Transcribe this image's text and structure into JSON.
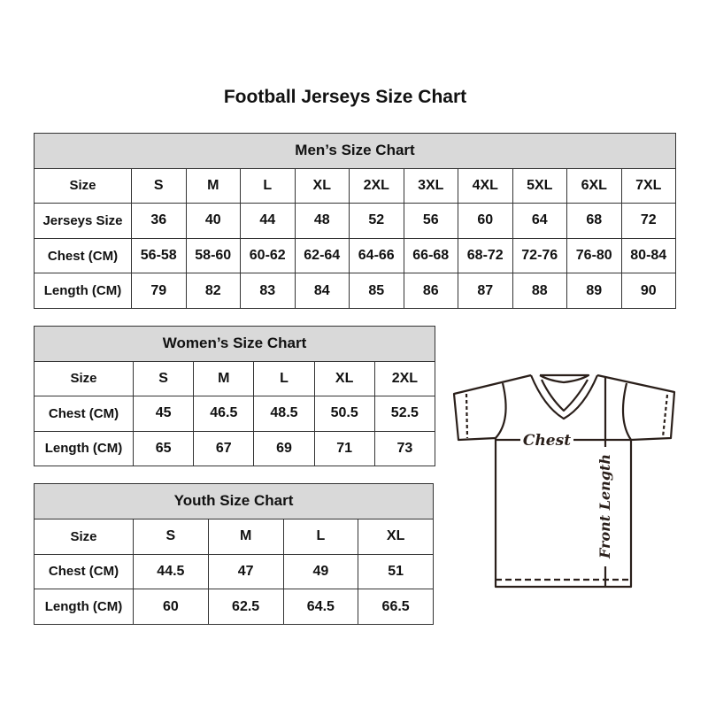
{
  "title": "Football Jerseys Size Chart",
  "men": {
    "heading": "Men’s Size Chart",
    "rows": [
      {
        "label": "Size",
        "values": [
          "S",
          "M",
          "L",
          "XL",
          "2XL",
          "3XL",
          "4XL",
          "5XL",
          "6XL",
          "7XL"
        ]
      },
      {
        "label": "Jerseys Size",
        "values": [
          "36",
          "40",
          "44",
          "48",
          "52",
          "56",
          "60",
          "64",
          "68",
          "72"
        ]
      },
      {
        "label": "Chest (CM)",
        "values": [
          "56-58",
          "58-60",
          "60-62",
          "62-64",
          "64-66",
          "66-68",
          "68-72",
          "72-76",
          "76-80",
          "80-84"
        ]
      },
      {
        "label": "Length (CM)",
        "values": [
          "79",
          "82",
          "83",
          "84",
          "85",
          "86",
          "87",
          "88",
          "89",
          "90"
        ]
      }
    ]
  },
  "women": {
    "heading": "Women’s Size Chart",
    "rows": [
      {
        "label": "Size",
        "values": [
          "S",
          "M",
          "L",
          "XL",
          "2XL"
        ]
      },
      {
        "label": "Chest (CM)",
        "values": [
          "45",
          "46.5",
          "48.5",
          "50.5",
          "52.5"
        ]
      },
      {
        "label": "Length (CM)",
        "values": [
          "65",
          "67",
          "69",
          "71",
          "73"
        ]
      }
    ]
  },
  "youth": {
    "heading": "Youth Size Chart",
    "rows": [
      {
        "label": "Size",
        "values": [
          "S",
          "M",
          "L",
          "XL"
        ]
      },
      {
        "label": "Chest (CM)",
        "values": [
          "44.5",
          "47",
          "49",
          "51"
        ]
      },
      {
        "label": "Length (CM)",
        "values": [
          "60",
          "62.5",
          "64.5",
          "66.5"
        ]
      }
    ]
  },
  "diagram": {
    "chest_label": "Chest",
    "length_label": "Front Length"
  },
  "colors": {
    "header_bg": "#d9d9d9",
    "border": "#333333",
    "jersey_line": "#2a1f1a"
  }
}
